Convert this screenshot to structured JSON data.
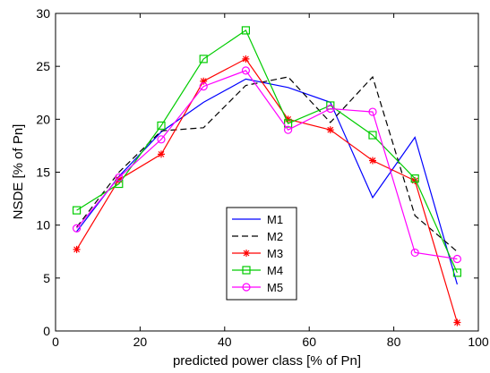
{
  "chart_data": {
    "type": "line",
    "xlabel": "predicted power class [% of Pn]",
    "ylabel": "NSDE [% of Pn]",
    "xlim": [
      0,
      100
    ],
    "ylim": [
      0,
      30
    ],
    "xticks": [
      "0",
      "20",
      "40",
      "60",
      "80",
      "100"
    ],
    "yticks": [
      "0",
      "5",
      "10",
      "15",
      "20",
      "25",
      "30"
    ],
    "grid": false,
    "legend_position": "center",
    "x": [
      5,
      15,
      25,
      35,
      45,
      55,
      65,
      75,
      85,
      95
    ],
    "series": [
      {
        "name": "M1",
        "color": "#0000ff",
        "dash": "solid",
        "marker": "none",
        "values": [
          9.4,
          14.6,
          18.8,
          21.6,
          23.8,
          23.0,
          21.6,
          12.6,
          18.3,
          4.4
        ]
      },
      {
        "name": "M2",
        "color": "#000000",
        "dash": "dashed",
        "marker": "none",
        "values": [
          9.8,
          15.0,
          18.9,
          19.2,
          23.2,
          24.0,
          19.7,
          24.0,
          10.9,
          7.5
        ]
      },
      {
        "name": "M3",
        "color": "#ff0000",
        "dash": "solid",
        "marker": "star",
        "values": [
          7.7,
          14.3,
          16.7,
          23.6,
          25.7,
          20.0,
          19.0,
          16.1,
          14.2,
          0.8
        ]
      },
      {
        "name": "M4",
        "color": "#00cc00",
        "dash": "solid",
        "marker": "square",
        "values": [
          11.4,
          13.9,
          19.4,
          25.7,
          28.4,
          19.6,
          21.3,
          18.5,
          14.4,
          5.5
        ]
      },
      {
        "name": "M5",
        "color": "#ff00ff",
        "dash": "solid",
        "marker": "circle",
        "values": [
          9.7,
          14.5,
          18.1,
          23.1,
          24.6,
          19.0,
          21.0,
          20.7,
          7.4,
          6.8
        ]
      }
    ]
  }
}
